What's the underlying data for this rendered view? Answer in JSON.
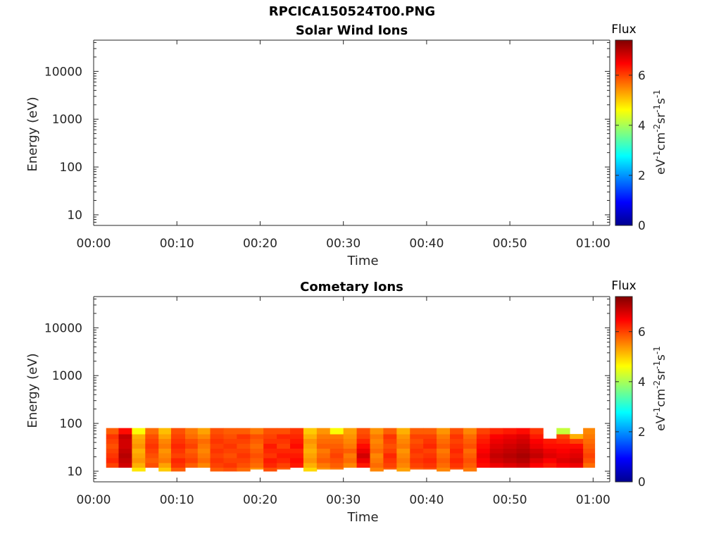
{
  "figure": {
    "title": "RPCICA150524T00.PNG"
  },
  "chart_data": [
    {
      "type": "heatmap",
      "title": "Solar Wind Ions",
      "xlabel": "Time",
      "ylabel": "Energy (eV)",
      "xticks": [
        "00:00",
        "00:10",
        "00:20",
        "00:30",
        "00:40",
        "00:50",
        "01:00"
      ],
      "xlim_minutes": [
        0,
        62
      ],
      "yscale": "log",
      "yticks": [
        "10",
        "100",
        "1000",
        "10000"
      ],
      "ylim": [
        6,
        45000
      ],
      "colorbar": {
        "label": "Flux",
        "units": "eV-1cm-2sr-1s-1",
        "ticks": [
          "0",
          "2",
          "4",
          "6"
        ],
        "range": [
          0,
          7.4
        ],
        "colormap": "jet"
      },
      "data": []
    },
    {
      "type": "heatmap",
      "title": "Cometary Ions",
      "xlabel": "Time",
      "ylabel": "Energy (eV)",
      "xticks": [
        "00:00",
        "00:10",
        "00:20",
        "00:30",
        "00:40",
        "00:50",
        "01:00"
      ],
      "xlim_minutes": [
        0,
        62
      ],
      "yscale": "log",
      "yticks": [
        "10",
        "100",
        "1000",
        "10000"
      ],
      "ylim": [
        6,
        45000
      ],
      "colorbar": {
        "label": "Flux",
        "units": "eV-1cm-2sr-1s-1",
        "ticks": [
          "0",
          "2",
          "4",
          "6"
        ],
        "range": [
          0,
          7.4
        ],
        "colormap": "jet"
      },
      "data_note_units": "time in minutes after 00:00, energy bands in eV, flux values on colorbar scale",
      "energy_band_edges": [
        10,
        12,
        15,
        19,
        24,
        30,
        38,
        48,
        60,
        80
      ],
      "data": [
        {
          "t0": 1.5,
          "t1": 3.0,
          "emin": 12,
          "v": [
            5.2,
            6.0,
            6.2,
            6.1,
            6.0,
            5.9,
            6.0,
            6.1,
            5.8
          ]
        },
        {
          "t0": 3.0,
          "t1": 4.6,
          "emin": 12,
          "v": [
            6.3,
            6.8,
            6.9,
            7.0,
            6.9,
            6.8,
            6.8,
            6.9,
            6.4
          ]
        },
        {
          "t0": 4.6,
          "t1": 6.2,
          "emin": 10,
          "v": [
            4.8,
            5.2,
            5.4,
            5.3,
            5.2,
            5.4,
            5.3,
            5.2,
            4.6
          ]
        },
        {
          "t0": 6.2,
          "t1": 7.8,
          "emin": 12,
          "v": [
            5.6,
            5.9,
            5.8,
            5.9,
            6.0,
            6.1,
            6.0,
            5.9,
            5.7
          ]
        },
        {
          "t0": 7.8,
          "t1": 9.3,
          "emin": 10,
          "v": [
            5.0,
            5.3,
            5.6,
            5.5,
            5.4,
            5.6,
            5.5,
            5.3,
            5.1
          ]
        },
        {
          "t0": 9.3,
          "t1": 11.0,
          "emin": 10,
          "v": [
            5.8,
            6.1,
            6.2,
            6.0,
            6.1,
            6.2,
            6.1,
            6.0,
            5.9
          ]
        },
        {
          "t0": 11.0,
          "t1": 12.5,
          "emin": 12,
          "v": [
            5.6,
            5.8,
            6.0,
            5.9,
            5.8,
            6.0,
            5.9,
            5.7,
            5.6
          ]
        },
        {
          "t0": 12.5,
          "t1": 14.0,
          "emin": 12,
          "v": [
            5.3,
            5.5,
            5.7,
            5.6,
            5.5,
            5.6,
            5.7,
            5.5,
            5.3
          ]
        },
        {
          "t0": 14.0,
          "t1": 15.6,
          "emin": 10,
          "v": [
            5.8,
            6.0,
            6.1,
            6.0,
            6.1,
            6.0,
            6.1,
            6.0,
            5.9
          ]
        },
        {
          "t0": 15.6,
          "t1": 17.2,
          "emin": 10,
          "v": [
            5.9,
            6.1,
            6.0,
            5.9,
            6.0,
            6.1,
            6.0,
            5.9,
            5.8
          ]
        },
        {
          "t0": 17.2,
          "t1": 18.8,
          "emin": 10,
          "v": [
            5.7,
            5.9,
            6.0,
            6.1,
            6.0,
            5.9,
            6.0,
            6.1,
            5.8
          ]
        },
        {
          "t0": 18.8,
          "t1": 20.4,
          "emin": 11,
          "v": [
            5.4,
            5.7,
            5.8,
            5.9,
            5.8,
            5.7,
            5.8,
            5.9,
            5.6
          ]
        },
        {
          "t0": 20.4,
          "t1": 22.0,
          "emin": 10,
          "v": [
            5.9,
            6.2,
            6.3,
            6.1,
            6.2,
            6.3,
            6.1,
            6.0,
            5.9
          ]
        },
        {
          "t0": 22.0,
          "t1": 23.6,
          "emin": 11,
          "v": [
            5.8,
            6.0,
            6.2,
            6.3,
            6.2,
            6.0,
            6.1,
            6.2,
            5.9
          ]
        },
        {
          "t0": 23.6,
          "t1": 25.2,
          "emin": 12,
          "v": [
            6.0,
            6.3,
            6.4,
            6.3,
            6.2,
            6.4,
            6.3,
            6.2,
            6.1
          ]
        },
        {
          "t0": 25.2,
          "t1": 26.8,
          "emin": 10,
          "v": [
            4.9,
            5.2,
            5.4,
            5.3,
            5.2,
            5.3,
            5.4,
            5.2,
            5.0
          ]
        },
        {
          "t0": 26.8,
          "t1": 28.4,
          "emin": 11,
          "v": [
            5.4,
            5.6,
            5.8,
            5.7,
            5.6,
            5.8,
            5.7,
            5.6,
            5.4
          ]
        },
        {
          "t0": 28.4,
          "t1": 30.0,
          "emin": 11,
          "v": [
            5.6,
            5.8,
            5.9,
            6.0,
            5.9,
            5.8,
            5.7,
            5.6,
            4.6
          ]
        },
        {
          "t0": 30.0,
          "t1": 31.6,
          "emin": 12,
          "v": [
            5.2,
            5.5,
            5.7,
            5.6,
            5.8,
            5.6,
            5.5,
            5.4,
            5.3
          ]
        },
        {
          "t0": 31.6,
          "t1": 33.2,
          "emin": 14,
          "v": [
            6.0,
            6.3,
            6.6,
            6.8,
            6.6,
            6.4,
            6.2,
            6.0,
            5.9
          ]
        },
        {
          "t0": 33.2,
          "t1": 34.8,
          "emin": 10,
          "v": [
            5.5,
            5.7,
            5.6,
            5.5,
            5.7,
            5.6,
            5.5,
            5.6,
            5.4
          ]
        },
        {
          "t0": 34.8,
          "t1": 36.4,
          "emin": 11,
          "v": [
            5.8,
            6.0,
            6.1,
            6.2,
            6.0,
            5.9,
            6.0,
            6.1,
            5.8
          ]
        },
        {
          "t0": 36.4,
          "t1": 38.0,
          "emin": 10,
          "v": [
            5.3,
            5.5,
            5.6,
            5.5,
            5.4,
            5.6,
            5.5,
            5.4,
            5.2
          ]
        },
        {
          "t0": 38.0,
          "t1": 39.6,
          "emin": 11,
          "v": [
            5.8,
            6.0,
            6.1,
            6.0,
            6.1,
            6.0,
            5.9,
            6.0,
            5.8
          ]
        },
        {
          "t0": 39.6,
          "t1": 41.2,
          "emin": 11,
          "v": [
            5.9,
            6.1,
            6.2,
            6.1,
            6.0,
            6.2,
            6.1,
            6.0,
            5.8
          ]
        },
        {
          "t0": 41.2,
          "t1": 42.8,
          "emin": 10,
          "v": [
            5.5,
            5.7,
            5.8,
            5.7,
            5.6,
            5.8,
            5.7,
            5.6,
            5.4
          ]
        },
        {
          "t0": 42.8,
          "t1": 44.4,
          "emin": 11,
          "v": [
            5.9,
            6.1,
            6.2,
            6.1,
            6.2,
            6.1,
            6.0,
            6.1,
            5.9
          ]
        },
        {
          "t0": 44.4,
          "t1": 46.0,
          "emin": 10,
          "v": [
            5.6,
            5.8,
            5.9,
            5.8,
            5.7,
            5.9,
            5.8,
            5.7,
            5.5
          ]
        },
        {
          "t0": 46.0,
          "t1": 47.6,
          "emin": 12,
          "v": [
            6.1,
            6.4,
            6.5,
            6.6,
            6.5,
            6.4,
            6.3,
            6.2,
            6.0
          ]
        },
        {
          "t0": 47.6,
          "t1": 49.2,
          "emin": 13,
          "v": [
            6.3,
            6.6,
            6.8,
            6.9,
            6.8,
            6.7,
            6.6,
            6.5,
            6.2
          ]
        },
        {
          "t0": 49.2,
          "t1": 50.8,
          "emin": 13,
          "v": [
            6.4,
            6.7,
            6.9,
            7.0,
            6.9,
            6.8,
            6.7,
            6.6,
            6.3
          ]
        },
        {
          "t0": 50.8,
          "t1": 52.4,
          "emin": 13,
          "v": [
            6.5,
            6.8,
            7.0,
            7.1,
            7.0,
            6.9,
            6.8,
            6.7,
            6.4
          ]
        },
        {
          "t0": 52.4,
          "t1": 54.0,
          "emin": 13,
          "v": [
            6.2,
            6.5,
            6.7,
            6.9,
            6.8,
            6.6,
            6.5,
            6.3,
            6.1
          ]
        },
        {
          "t0": 54.0,
          "t1": 55.6,
          "emin": 13,
          "v": [
            6.0,
            6.3,
            6.5,
            6.7,
            6.6,
            6.4,
            6.3,
            0,
            0
          ]
        },
        {
          "t0": 55.6,
          "t1": 57.2,
          "emin": 13,
          "v": [
            6.2,
            6.5,
            6.7,
            6.6,
            6.5,
            6.4,
            6.2,
            6.0,
            4.2
          ]
        },
        {
          "t0": 57.2,
          "t1": 58.8,
          "emin": 14,
          "v": [
            6.3,
            6.6,
            6.8,
            6.7,
            6.6,
            6.4,
            6.0,
            5.2,
            0
          ]
        },
        {
          "t0": 58.8,
          "t1": 60.2,
          "emin": 16,
          "v": [
            5.4,
            5.7,
            5.9,
            6.0,
            5.9,
            5.8,
            5.7,
            5.6,
            5.5
          ]
        }
      ]
    }
  ]
}
